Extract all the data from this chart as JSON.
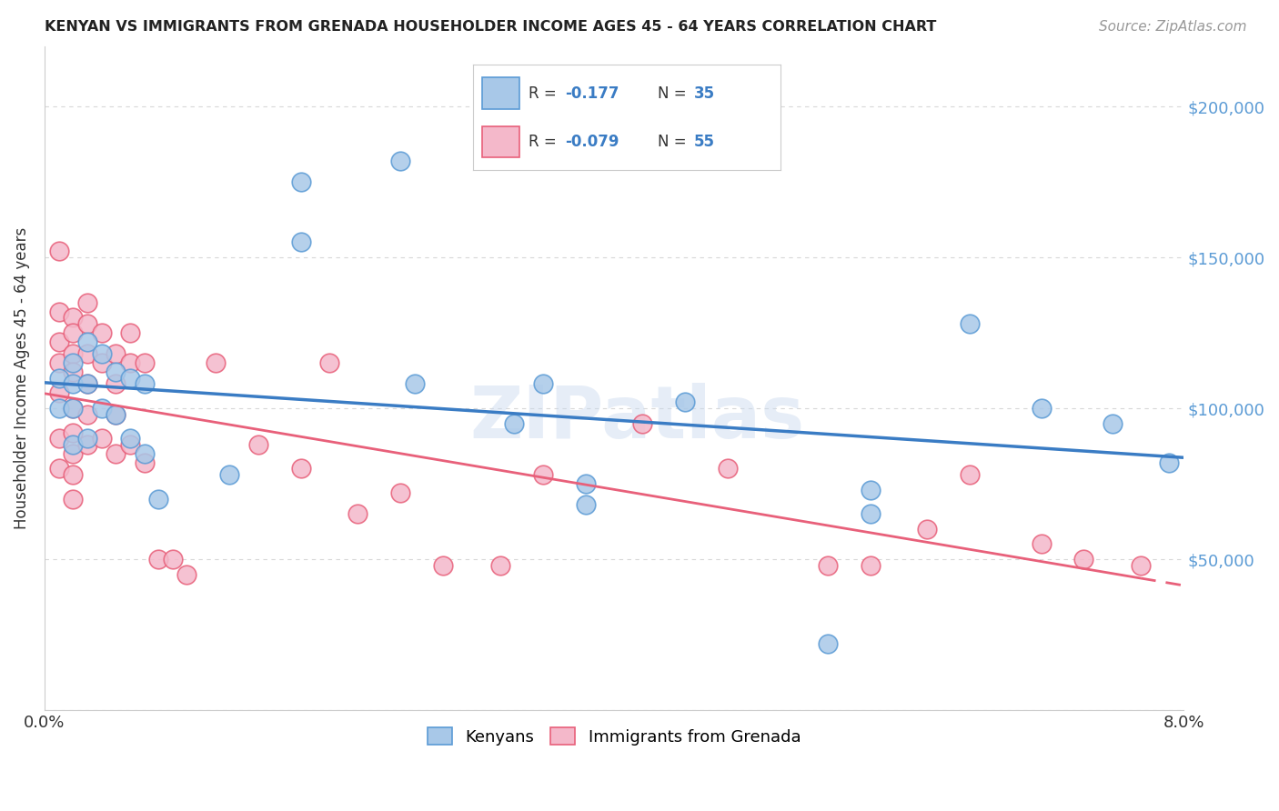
{
  "title": "KENYAN VS IMMIGRANTS FROM GRENADA HOUSEHOLDER INCOME AGES 45 - 64 YEARS CORRELATION CHART",
  "source": "Source: ZipAtlas.com",
  "ylabel": "Householder Income Ages 45 - 64 years",
  "xlim": [
    0.0,
    0.08
  ],
  "ylim": [
    0,
    220000
  ],
  "ytick_vals": [
    0,
    50000,
    100000,
    150000,
    200000
  ],
  "ytick_labels": [
    "",
    "$50,000",
    "$100,000",
    "$150,000",
    "$200,000"
  ],
  "xtick_vals": [
    0.0,
    0.01,
    0.02,
    0.03,
    0.04,
    0.05,
    0.06,
    0.07,
    0.08
  ],
  "xtick_labels": [
    "0.0%",
    "",
    "",
    "",
    "",
    "",
    "",
    "",
    "8.0%"
  ],
  "watermark": "ZIPatlas",
  "background_color": "#ffffff",
  "grid_color": "#d8d8d8",
  "kenyan_face_color": "#a8c8e8",
  "kenyan_edge_color": "#5b9bd5",
  "grenada_face_color": "#f4b8ca",
  "grenada_edge_color": "#e8607a",
  "kenyan_line_color": "#3a7cc4",
  "grenada_line_color": "#e8607a",
  "legend_kenyan_R": "-0.177",
  "legend_kenyan_N": "35",
  "legend_grenada_R": "-0.079",
  "legend_grenada_N": "55",
  "kenyan_x": [
    0.001,
    0.001,
    0.002,
    0.002,
    0.002,
    0.002,
    0.003,
    0.003,
    0.003,
    0.004,
    0.004,
    0.005,
    0.005,
    0.006,
    0.006,
    0.007,
    0.007,
    0.008,
    0.013,
    0.018,
    0.018,
    0.025,
    0.026,
    0.033,
    0.035,
    0.038,
    0.038,
    0.045,
    0.055,
    0.058,
    0.058,
    0.065,
    0.07,
    0.075,
    0.079
  ],
  "kenyan_y": [
    110000,
    100000,
    115000,
    108000,
    100000,
    88000,
    122000,
    108000,
    90000,
    118000,
    100000,
    112000,
    98000,
    110000,
    90000,
    108000,
    85000,
    70000,
    78000,
    175000,
    155000,
    182000,
    108000,
    95000,
    108000,
    75000,
    68000,
    102000,
    22000,
    73000,
    65000,
    128000,
    100000,
    95000,
    82000
  ],
  "grenada_x": [
    0.001,
    0.001,
    0.001,
    0.001,
    0.001,
    0.001,
    0.001,
    0.002,
    0.002,
    0.002,
    0.002,
    0.002,
    0.002,
    0.002,
    0.002,
    0.002,
    0.003,
    0.003,
    0.003,
    0.003,
    0.003,
    0.003,
    0.004,
    0.004,
    0.004,
    0.005,
    0.005,
    0.005,
    0.005,
    0.006,
    0.006,
    0.006,
    0.007,
    0.007,
    0.008,
    0.009,
    0.01,
    0.012,
    0.015,
    0.018,
    0.02,
    0.022,
    0.025,
    0.028,
    0.032,
    0.035,
    0.042,
    0.048,
    0.055,
    0.058,
    0.062,
    0.065,
    0.07,
    0.073,
    0.077
  ],
  "grenada_y": [
    152000,
    132000,
    122000,
    115000,
    105000,
    90000,
    80000,
    130000,
    125000,
    118000,
    112000,
    100000,
    92000,
    85000,
    78000,
    70000,
    135000,
    128000,
    118000,
    108000,
    98000,
    88000,
    125000,
    115000,
    90000,
    118000,
    108000,
    98000,
    85000,
    125000,
    115000,
    88000,
    115000,
    82000,
    50000,
    50000,
    45000,
    115000,
    88000,
    80000,
    115000,
    65000,
    72000,
    48000,
    48000,
    78000,
    95000,
    80000,
    48000,
    48000,
    60000,
    78000,
    55000,
    50000,
    48000
  ]
}
